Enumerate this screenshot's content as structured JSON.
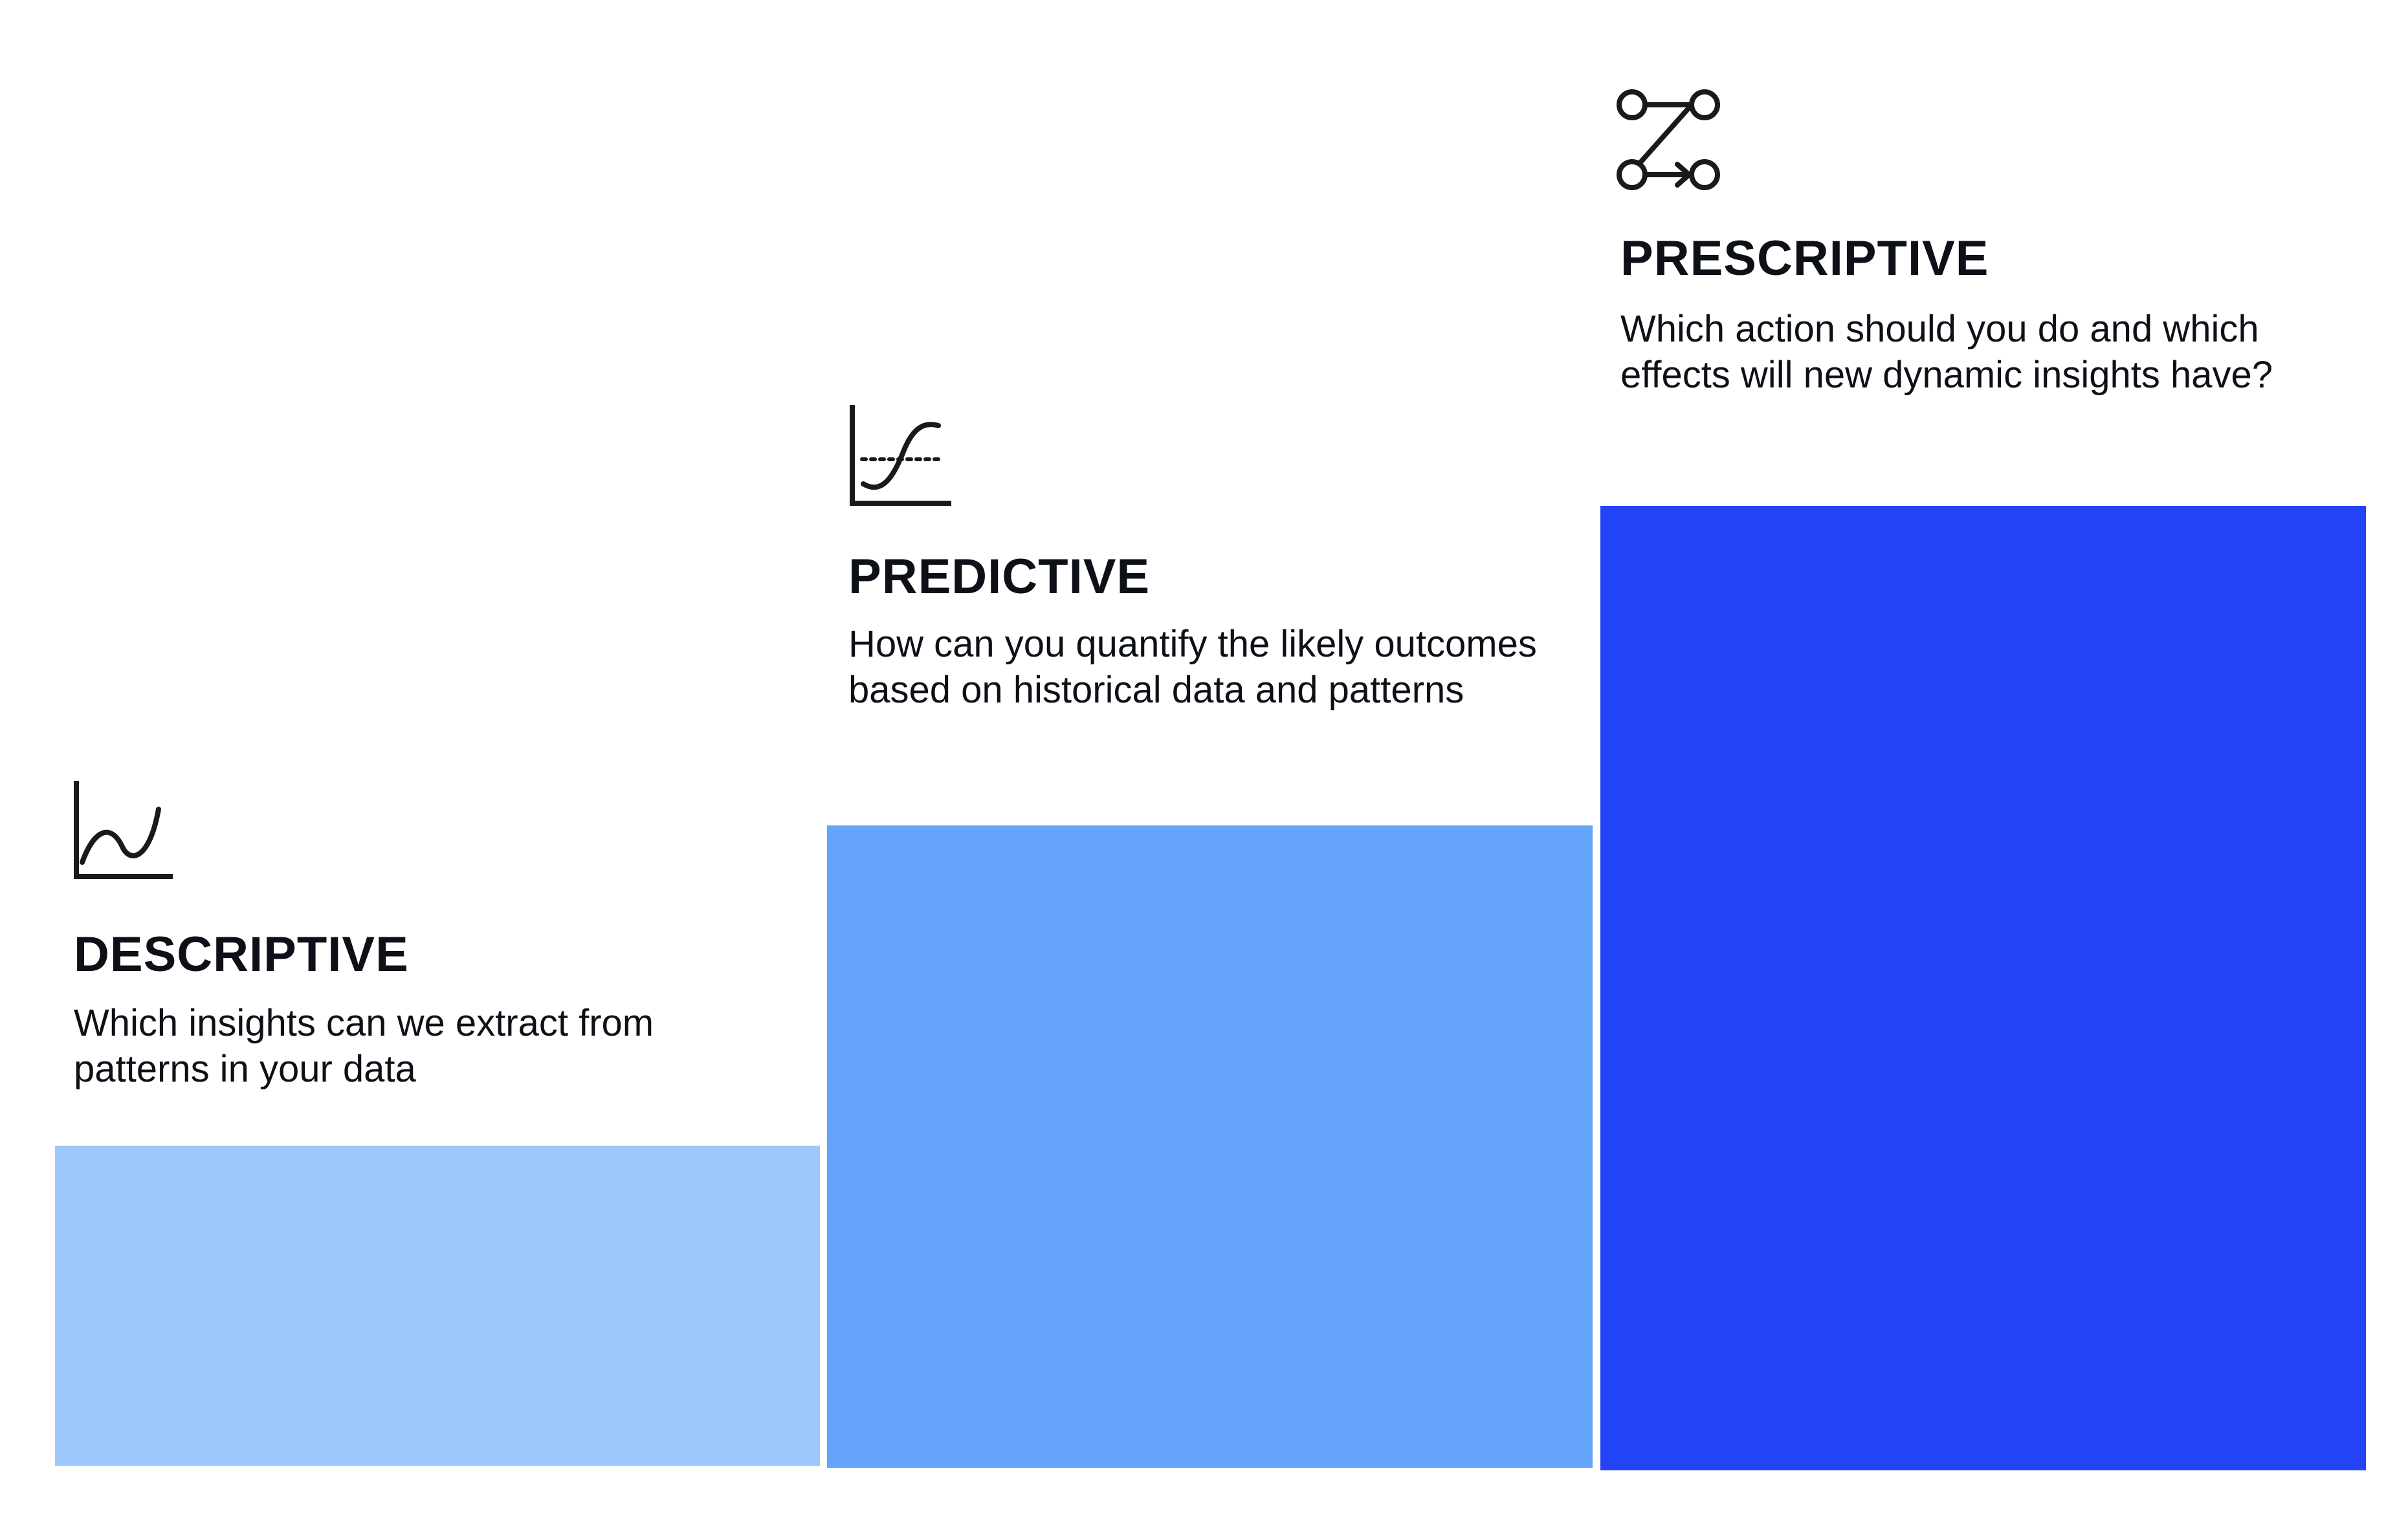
{
  "steps": [
    {
      "id": "descriptive",
      "icon": "trend-line-chart-icon",
      "title": "DESCRIPTIVE",
      "description": "Which insights can we extract from patterns in your data",
      "color": "#9cc8fb"
    },
    {
      "id": "predictive",
      "icon": "forecast-curve-chart-icon",
      "title": "PREDICTIVE",
      "description": "How can you quantify the likely outcomes based on historical data and patterns",
      "color": "#64a4fb"
    },
    {
      "id": "prescriptive",
      "icon": "decision-path-icon",
      "title": "PRESCRIPTIVE",
      "description": "Which action should you do and which effects will new dynamic insights have?",
      "color": "#2244f6"
    }
  ],
  "colors": {
    "text": "#0d1117",
    "icon_stroke": "#1a1a1a",
    "background": "#ffffff"
  }
}
